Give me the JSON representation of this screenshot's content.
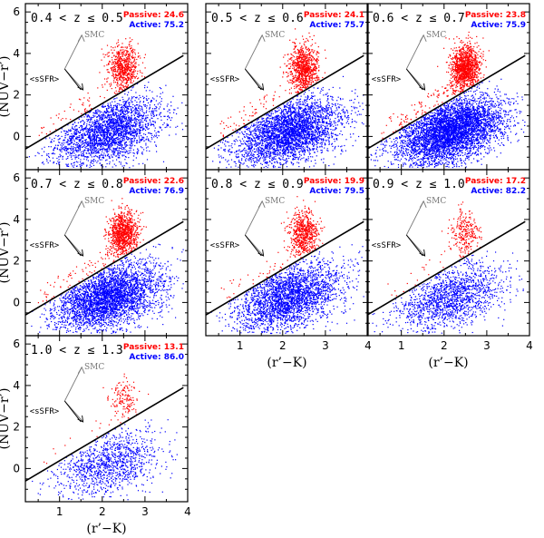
{
  "chart_data": {
    "type": "scatter",
    "xlabel": "(r’−K)",
    "ylabel": "(NUV−r’)",
    "xlim": [
      0.2,
      4.0
    ],
    "ylim": [
      -1.6,
      6.4
    ],
    "xticks": [
      1,
      2,
      3,
      4
    ],
    "yticks": [
      0,
      2,
      4,
      6
    ],
    "divider_line": {
      "x": [
        0.2,
        3.9
      ],
      "y": [
        -0.6,
        3.9
      ]
    },
    "colors": {
      "passive": "#ff0000",
      "active": "#0000ff",
      "smc_arrow": "#777777",
      "ssfr_arrow": "#000000"
    },
    "annotations": {
      "smc": "SMC",
      "ssfr": "<sSFR>"
    },
    "legend_labels": {
      "passive": "Passive:",
      "active": "Active:"
    },
    "panels": [
      {
        "z_label": "0.4 < z ≤ 0.5",
        "passive_pct": "24.6",
        "active_pct": "75.2"
      },
      {
        "z_label": "0.5 < z ≤ 0.6",
        "passive_pct": "24.1",
        "active_pct": "75.7"
      },
      {
        "z_label": "0.6 < z ≤ 0.7",
        "passive_pct": "23.8",
        "active_pct": "75.9"
      },
      {
        "z_label": "0.7 < z ≤ 0.8",
        "passive_pct": "22.6",
        "active_pct": "76.9"
      },
      {
        "z_label": "0.8 < z ≤ 0.9",
        "passive_pct": "19.9",
        "active_pct": "79.5"
      },
      {
        "z_label": "0.9 < z ≤ 1.0",
        "passive_pct": "17.2",
        "active_pct": "82.2"
      },
      {
        "z_label": "1.0 < z ≤ 1.3",
        "passive_pct": "13.1",
        "active_pct": "86.0"
      }
    ]
  }
}
